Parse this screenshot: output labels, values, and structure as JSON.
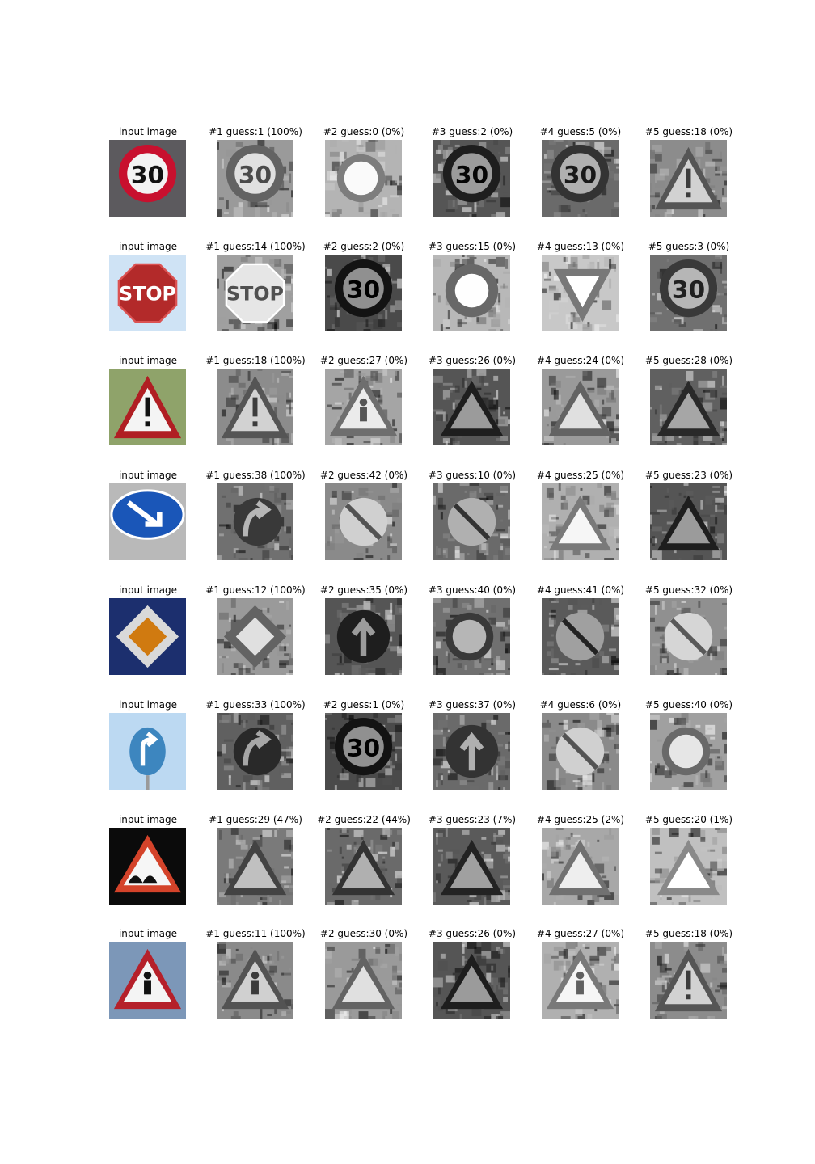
{
  "rows": [
    {
      "input": {
        "caption": "input image",
        "sign": "speed-limit-30",
        "colors": {
          "bg": "#5c5a5e",
          "ring": "#c8102e",
          "inner": "#f2f2f2",
          "text": "#111111"
        }
      },
      "guesses": [
        {
          "caption": "#1 guess:1 (100%)",
          "sign": "round-limit",
          "tone": "#9a9a9a"
        },
        {
          "caption": "#2 guess:0 (0%)",
          "sign": "round-dark",
          "tone": "#b4b4b4"
        },
        {
          "caption": "#3 guess:2 (0%)",
          "sign": "round-limit",
          "tone": "#555555"
        },
        {
          "caption": "#4 guess:5 (0%)",
          "sign": "round-limit",
          "tone": "#6a6a6a"
        },
        {
          "caption": "#5 guess:18 (0%)",
          "sign": "triangle-exclaim",
          "tone": "#8c8c8c"
        }
      ]
    },
    {
      "input": {
        "caption": "input image",
        "sign": "stop",
        "colors": {
          "bg": "#cfe3f5",
          "ring": "#b32a2a",
          "inner": "#b32a2a",
          "text": "#ffffff"
        }
      },
      "guesses": [
        {
          "caption": "#1 guess:14 (100%)",
          "sign": "octagon",
          "tone": "#a0a0a0"
        },
        {
          "caption": "#2 guess:2 (0%)",
          "sign": "round-limit",
          "tone": "#4a4a4a"
        },
        {
          "caption": "#3 guess:15 (0%)",
          "sign": "round-ring",
          "tone": "#b8b8b8"
        },
        {
          "caption": "#4 guess:13 (0%)",
          "sign": "triangle-down",
          "tone": "#c8c8c8"
        },
        {
          "caption": "#5 guess:3 (0%)",
          "sign": "round-limit",
          "tone": "#707070"
        }
      ]
    },
    {
      "input": {
        "caption": "input image",
        "sign": "triangle-exclaim",
        "colors": {
          "bg": "#8fa36a",
          "ring": "#b01e23",
          "inner": "#f4f4f4",
          "text": "#111111"
        }
      },
      "guesses": [
        {
          "caption": "#1 guess:18 (100%)",
          "sign": "triangle-exclaim",
          "tone": "#8c8c8c"
        },
        {
          "caption": "#2 guess:27 (0%)",
          "sign": "triangle-ped",
          "tone": "#a5a5a5"
        },
        {
          "caption": "#3 guess:26 (0%)",
          "sign": "triangle-plain",
          "tone": "#555555"
        },
        {
          "caption": "#4 guess:24 (0%)",
          "sign": "triangle-plain",
          "tone": "#9a9a9a"
        },
        {
          "caption": "#5 guess:28 (0%)",
          "sign": "triangle-plain",
          "tone": "#606060"
        }
      ]
    },
    {
      "input": {
        "caption": "input image",
        "sign": "keep-right",
        "colors": {
          "bg": "#b9b9b9",
          "ring": "#ffffff",
          "inner": "#1a56b8",
          "text": "#ffffff"
        }
      },
      "guesses": [
        {
          "caption": "#1 guess:38 (100%)",
          "sign": "arrow-curve",
          "tone": "#707070"
        },
        {
          "caption": "#2 guess:42 (0%)",
          "sign": "round-slash",
          "tone": "#8a8a8a"
        },
        {
          "caption": "#3 guess:10 (0%)",
          "sign": "round-slash",
          "tone": "#6a6a6a"
        },
        {
          "caption": "#4 guess:25 (0%)",
          "sign": "triangle-plain",
          "tone": "#b0b0b0"
        },
        {
          "caption": "#5 guess:23 (0%)",
          "sign": "triangle-plain",
          "tone": "#555555"
        }
      ]
    },
    {
      "input": {
        "caption": "input image",
        "sign": "priority-road",
        "colors": {
          "bg": "#1c2f6e",
          "ring": "#d9d9d9",
          "inner": "#d07a10",
          "text": "#ffffff"
        }
      },
      "guesses": [
        {
          "caption": "#1 guess:12 (100%)",
          "sign": "diamond",
          "tone": "#9a9a9a"
        },
        {
          "caption": "#2 guess:35 (0%)",
          "sign": "round-arrow",
          "tone": "#555555"
        },
        {
          "caption": "#3 guess:40 (0%)",
          "sign": "round-dark",
          "tone": "#707070"
        },
        {
          "caption": "#4 guess:41 (0%)",
          "sign": "round-slash",
          "tone": "#5a5a5a"
        },
        {
          "caption": "#5 guess:32 (0%)",
          "sign": "round-slash",
          "tone": "#909090"
        }
      ]
    },
    {
      "input": {
        "caption": "input image",
        "sign": "turn-right-ahead",
        "colors": {
          "bg": "#bcd9f2",
          "ring": "#3d86bf",
          "inner": "#3d86bf",
          "text": "#ffffff"
        }
      },
      "guesses": [
        {
          "caption": "#1 guess:33 (100%)",
          "sign": "arrow-curve",
          "tone": "#606060"
        },
        {
          "caption": "#2 guess:1 (0%)",
          "sign": "round-limit",
          "tone": "#4a4a4a"
        },
        {
          "caption": "#3 guess:37 (0%)",
          "sign": "round-arrow",
          "tone": "#6a6a6a"
        },
        {
          "caption": "#4 guess:6 (0%)",
          "sign": "round-slash",
          "tone": "#8a8a8a"
        },
        {
          "caption": "#5 guess:40 (0%)",
          "sign": "round-dark",
          "tone": "#a0a0a0"
        }
      ]
    },
    {
      "input": {
        "caption": "input image",
        "sign": "bumpy-road",
        "colors": {
          "bg": "#0b0b0b",
          "ring": "#d4432a",
          "inner": "#f6f6f6",
          "text": "#111111"
        }
      },
      "guesses": [
        {
          "caption": "#1 guess:29 (47%)",
          "sign": "triangle-plain",
          "tone": "#7a7a7a"
        },
        {
          "caption": "#2 guess:22 (44%)",
          "sign": "triangle-plain",
          "tone": "#6a6a6a"
        },
        {
          "caption": "#3 guess:23 (7%)",
          "sign": "triangle-plain",
          "tone": "#5a5a5a"
        },
        {
          "caption": "#4 guess:25 (2%)",
          "sign": "triangle-plain",
          "tone": "#a8a8a8"
        },
        {
          "caption": "#5 guess:20 (1%)",
          "sign": "triangle-plain",
          "tone": "#c0c0c0"
        }
      ]
    },
    {
      "input": {
        "caption": "input image",
        "sign": "triangle-ped",
        "colors": {
          "bg": "#7c97b8",
          "ring": "#b5202a",
          "inner": "#f4f4f4",
          "text": "#111111"
        }
      },
      "guesses": [
        {
          "caption": "#1 guess:11 (100%)",
          "sign": "triangle-ped",
          "tone": "#8a8a8a"
        },
        {
          "caption": "#2 guess:30 (0%)",
          "sign": "triangle-plain",
          "tone": "#9a9a9a"
        },
        {
          "caption": "#3 guess:26 (0%)",
          "sign": "triangle-plain",
          "tone": "#555555"
        },
        {
          "caption": "#4 guess:27 (0%)",
          "sign": "triangle-ped",
          "tone": "#b0b0b0"
        },
        {
          "caption": "#5 guess:18 (0%)",
          "sign": "triangle-exclaim",
          "tone": "#8c8c8c"
        }
      ]
    }
  ]
}
